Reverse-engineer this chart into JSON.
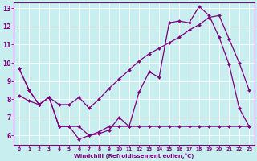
{
  "xlabel": "Windchill (Refroidissement éolien,°C)",
  "bg_color": "#c8eef0",
  "line_color": "#800080",
  "grid_color": "#ffffff",
  "ylim": [
    5.5,
    13.3
  ],
  "xlim": [
    -0.5,
    23.5
  ],
  "yticks": [
    6,
    7,
    8,
    9,
    10,
    11,
    12,
    13
  ],
  "xticks": [
    0,
    1,
    2,
    3,
    4,
    5,
    6,
    7,
    8,
    9,
    10,
    11,
    12,
    13,
    14,
    15,
    16,
    17,
    18,
    19,
    20,
    21,
    22,
    23
  ],
  "line1_x": [
    0,
    1,
    2,
    3,
    4,
    5,
    6,
    7,
    8,
    9,
    10,
    11,
    12,
    13,
    14,
    15,
    16,
    17,
    18,
    19,
    20,
    21,
    22,
    23
  ],
  "line1_y": [
    9.7,
    8.5,
    7.7,
    8.1,
    6.5,
    6.5,
    6.5,
    6.0,
    6.1,
    6.3,
    7.0,
    6.5,
    8.4,
    9.5,
    9.2,
    12.2,
    12.3,
    12.2,
    13.1,
    12.6,
    11.4,
    9.9,
    7.5,
    6.5
  ],
  "line2_x": [
    0,
    1,
    2,
    3,
    4,
    5,
    6,
    7,
    8,
    9,
    10,
    11,
    12,
    13,
    14,
    15,
    16,
    17,
    18,
    19,
    20,
    21,
    22,
    23
  ],
  "line2_y": [
    9.7,
    8.5,
    7.7,
    8.1,
    6.5,
    6.5,
    5.8,
    6.0,
    6.2,
    6.5,
    6.5,
    6.5,
    6.5,
    6.5,
    6.5,
    6.5,
    6.5,
    6.5,
    6.5,
    6.5,
    6.5,
    6.5,
    6.5,
    6.5
  ],
  "line3_x": [
    0,
    1,
    2,
    3,
    4,
    5,
    6,
    7,
    8,
    9,
    10,
    11,
    12,
    13,
    14,
    15,
    16,
    17,
    18,
    19,
    20,
    21,
    22,
    23
  ],
  "line3_y": [
    8.2,
    7.9,
    7.7,
    8.1,
    7.7,
    7.7,
    8.1,
    7.5,
    8.0,
    8.6,
    9.1,
    9.6,
    10.1,
    10.5,
    10.8,
    11.1,
    11.4,
    11.8,
    12.1,
    12.5,
    12.6,
    11.3,
    10.0,
    8.5
  ]
}
